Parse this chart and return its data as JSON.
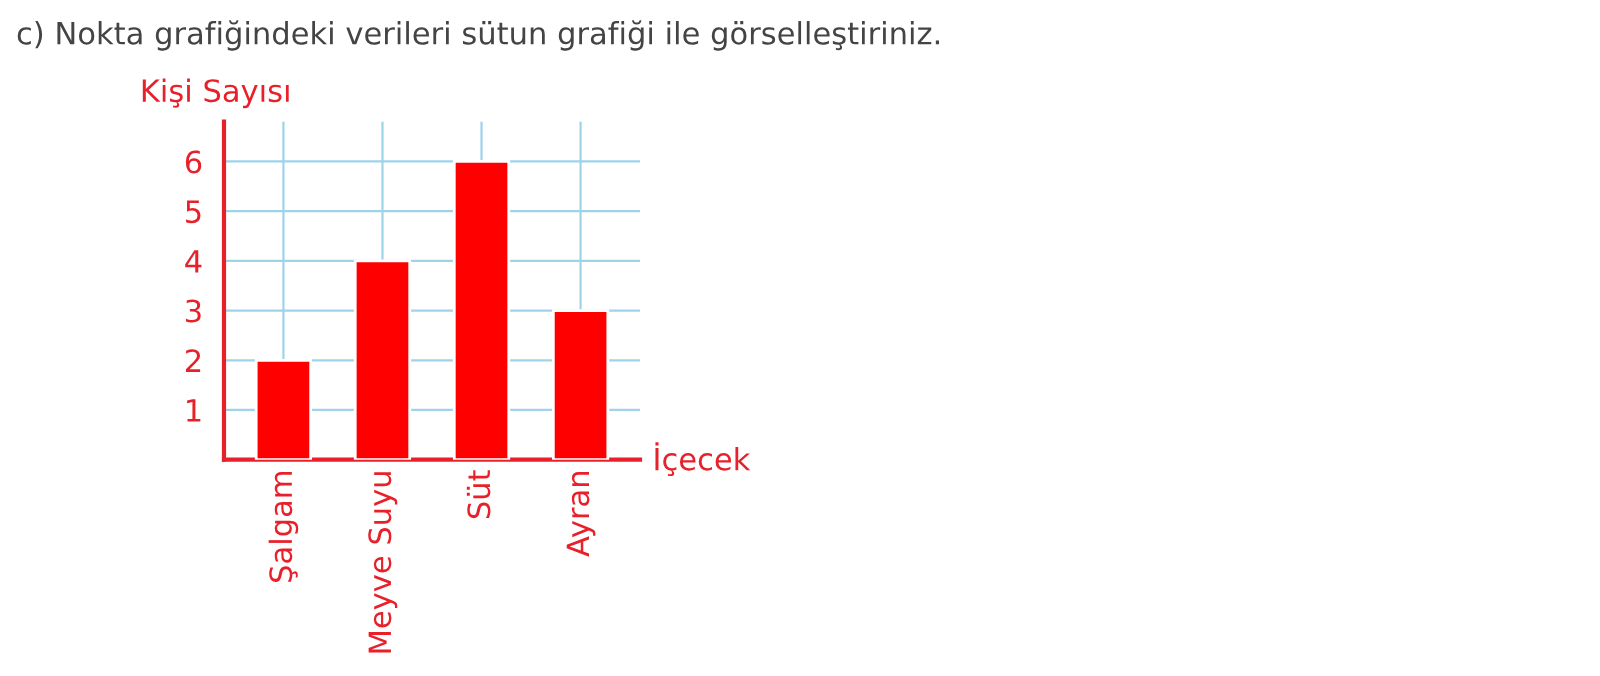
{
  "chart_data": {
    "type": "bar",
    "title": "c) Nokta grafiğindeki verileri sütun grafiği ile görselleştiriniz.",
    "xlabel": "İçecek",
    "ylabel": "Kişi Sayısı",
    "categories": [
      "Şalgam",
      "Meyve Suyu",
      "Süt",
      "Ayran"
    ],
    "values": [
      2,
      4,
      6,
      3
    ],
    "color": "#ff0000",
    "ylim": [
      0,
      6.8
    ],
    "yticks": [
      1,
      2,
      3,
      4,
      5,
      6
    ],
    "grid": true
  }
}
